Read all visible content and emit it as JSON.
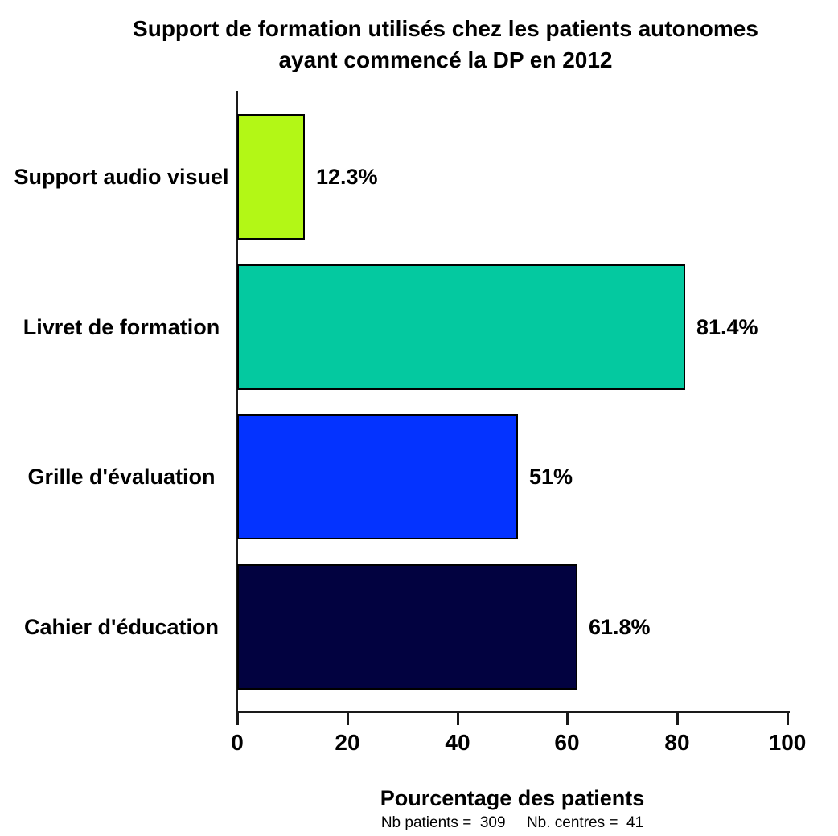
{
  "header": {
    "title_lines": [
      "Support de formation utilisés chez les patients autonomes",
      "ayant commencé la DP en 2012"
    ]
  },
  "chart_data": {
    "type": "bar",
    "orientation": "horizontal",
    "title": "Support de formation utilisés chez les patients autonomes ayant commencé la DP en 2012",
    "categories": [
      "Support audio visuel",
      "Livret de formation",
      "Grille d'évaluation",
      "Cahier d'éducation"
    ],
    "values": [
      12.3,
      81.4,
      51,
      61.8
    ],
    "value_labels": [
      "12.3%",
      "81.4%",
      "51%",
      "61.8%"
    ],
    "bar_colors": [
      "#B3F716",
      "#04C9A0",
      "#0433FF",
      "#020240"
    ],
    "bar_border_color": "#000000",
    "xlabel": "Pourcentage des patients",
    "ylabel": "",
    "x_ticks": [
      0,
      20,
      40,
      60,
      80,
      100
    ],
    "xlim": [
      0,
      100
    ],
    "grid": false,
    "legend": "none",
    "axis_color": "#1a1a1a",
    "footnote": "Nb patients =  309     Nb. centres =  41"
  }
}
